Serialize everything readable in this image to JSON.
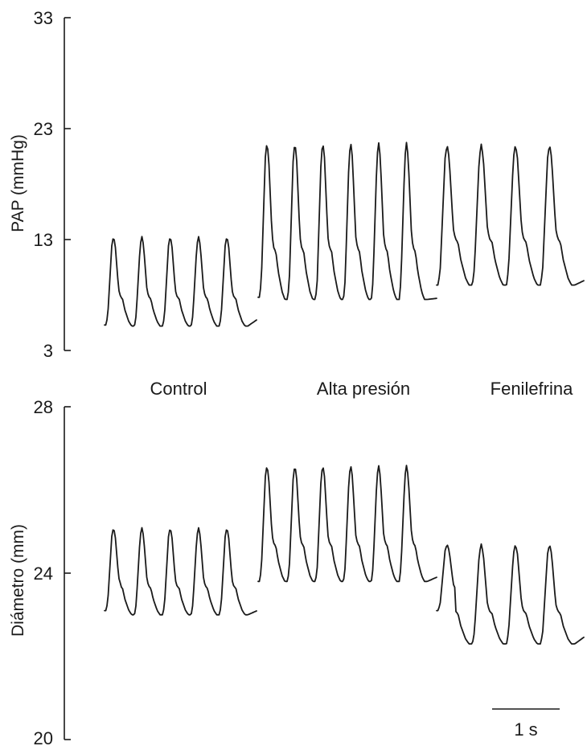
{
  "chart_data": [
    {
      "type": "line",
      "ylabel": "PAP (mmHg)",
      "yticks": [
        "33",
        "23",
        "13",
        "3"
      ],
      "ylim": [
        3,
        33
      ],
      "segments": [
        {
          "name": "Control",
          "beats": 5,
          "peak": 13.3,
          "trough": 5.2,
          "start": 5.3,
          "end": 5.8
        },
        {
          "name": "Alta presión",
          "beats": 6,
          "peak": 21.8,
          "trough": 7.6,
          "start": 7.8,
          "end": 7.7
        },
        {
          "name": "Fenilefrina",
          "beats": 4,
          "peak": 21.6,
          "trough": 8.9,
          "start": 8.9,
          "end": 9.4
        }
      ]
    },
    {
      "type": "line",
      "ylabel": "Diámetro (mm)",
      "yticks": [
        "28",
        "24",
        "20"
      ],
      "ylim": [
        20,
        28
      ],
      "segments": [
        {
          "name": "Control",
          "beats": 5,
          "peak": 25.1,
          "trough": 23.0,
          "start": 23.1,
          "end": 23.1
        },
        {
          "name": "Alta presión",
          "beats": 6,
          "peak": 26.6,
          "trough": 23.8,
          "start": 23.8,
          "end": 23.9
        },
        {
          "name": "Fenilefrina",
          "beats": 4,
          "peak": 24.7,
          "trough": 22.3,
          "start": 23.1,
          "end": 22.5
        }
      ]
    }
  ],
  "condition_labels": [
    "Control",
    "Alta presión",
    "Fenilefrina"
  ],
  "scale_bar": {
    "label": "1 s",
    "seconds": 1
  }
}
